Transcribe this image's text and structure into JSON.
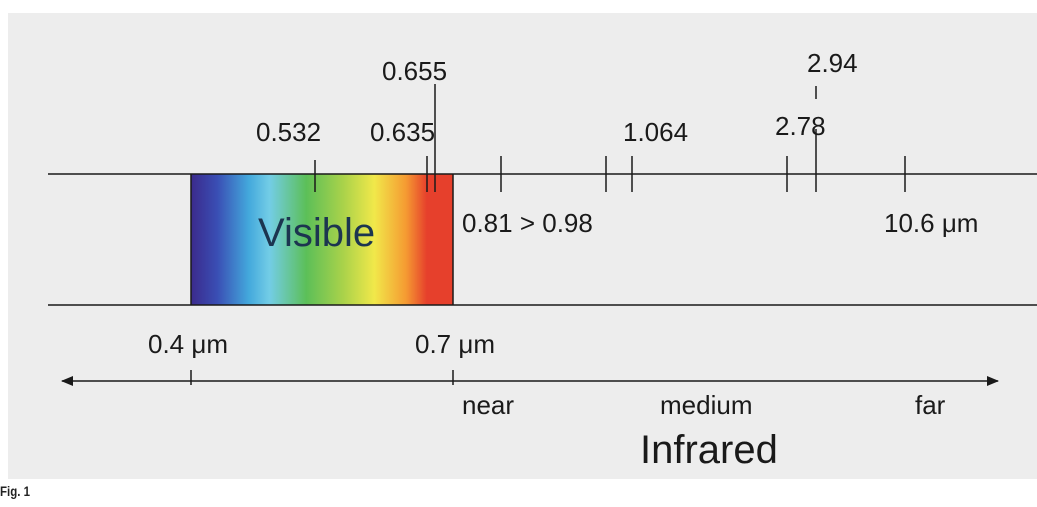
{
  "figure_caption": "Fig. 1",
  "band_label": "Visible",
  "region_label": "Infrared",
  "visible_bounds": {
    "left": "0.4 μm",
    "right": "0.7 μm"
  },
  "ir_subregions": [
    "near",
    "medium",
    "far"
  ],
  "wavelength_markers": [
    {
      "label": "0.532",
      "value_um": 0.532
    },
    {
      "label": "0.635",
      "value_um": 0.635
    },
    {
      "label": "0.655",
      "value_um": 0.655
    },
    {
      "label": "0.81 > 0.98",
      "value_um": [
        0.81,
        0.98
      ]
    },
    {
      "label": "1.064",
      "value_um": 1.064
    },
    {
      "label": "2.78",
      "value_um": 2.78
    },
    {
      "label": "2.94",
      "value_um": 2.94
    },
    {
      "label": "10.6 μm",
      "value_um": 10.6
    }
  ],
  "colors": {
    "panel_background": "#ededed",
    "line": "#1a1a1a",
    "spectrum": [
      "#3b2a8c",
      "#3a53b8",
      "#43a8dc",
      "#73cde6",
      "#5cbf58",
      "#a9d24a",
      "#f1e84a",
      "#f59b32",
      "#e6402c"
    ]
  }
}
